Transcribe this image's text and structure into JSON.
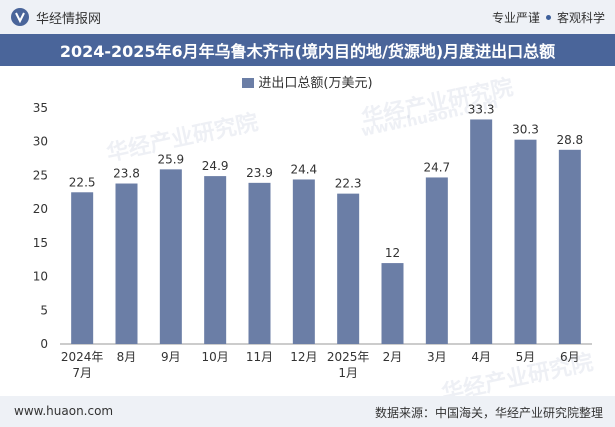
{
  "header": {
    "brand": "华经情报网",
    "tag1": "专业严谨",
    "tag2": "客观科学"
  },
  "title": "2024-2025年6月年乌鲁木齐市(境内目的地/货源地)月度进出口总额",
  "watermarks": [
    "华经产业研究院",
    "www.huaon.com",
    "华经产业研究院",
    "华经产业研究院"
  ],
  "chart_data": {
    "type": "bar",
    "title": "2024-2025年6月年乌鲁木齐市(境内目的地/货源地)月度进出口总额",
    "legend": "进出口总额(万美元)",
    "categories": [
      [
        "2024年",
        "7月"
      ],
      [
        "8月"
      ],
      [
        "9月"
      ],
      [
        "10月"
      ],
      [
        "11月"
      ],
      [
        "12月"
      ],
      [
        "2025年",
        "1月"
      ],
      [
        "2月"
      ],
      [
        "3月"
      ],
      [
        "4月"
      ],
      [
        "5月"
      ],
      [
        "6月"
      ]
    ],
    "values": [
      22.5,
      23.8,
      25.9,
      24.9,
      23.9,
      24.4,
      22.3,
      12,
      24.7,
      33.3,
      30.3,
      28.8
    ],
    "ylim": [
      0,
      35
    ],
    "yticks": [
      0,
      5,
      10,
      15,
      20,
      25,
      30,
      35
    ],
    "bar_color": "#6b7ea6"
  },
  "footer": {
    "site": "www.huaon.com",
    "source": "数据来源：中国海关，华经产业研究院整理"
  }
}
